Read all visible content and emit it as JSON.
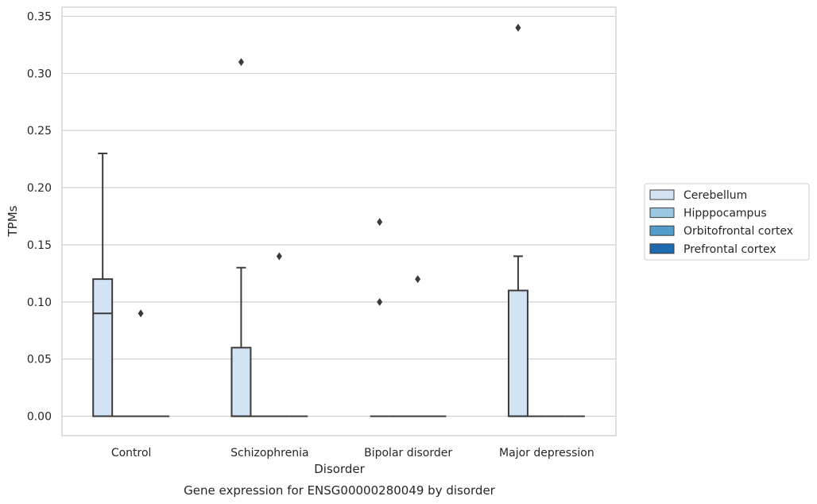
{
  "chart_data": {
    "type": "box",
    "caption": "Gene expression for ENSG00000280049 by disorder",
    "xlabel": "Disorder",
    "ylabel": "TPMs",
    "ylim": [
      -0.017,
      0.358
    ],
    "yticks": [
      0.0,
      0.05,
      0.1,
      0.15,
      0.2,
      0.25,
      0.3,
      0.35
    ],
    "ytick_labels": [
      "0.00",
      "0.05",
      "0.10",
      "0.15",
      "0.20",
      "0.25",
      "0.30",
      "0.35"
    ],
    "grid": "horizontal",
    "legend_position": "outside-right",
    "categories": [
      "Control",
      "Schizophrenia",
      "Bipolar disorder",
      "Major depression"
    ],
    "series": [
      {
        "name": "Cerebellum",
        "color": "#d2e3f3",
        "boxes": [
          {
            "category": "Control",
            "min": 0.0,
            "q1": 0.0,
            "median": 0.09,
            "q3": 0.12,
            "max": 0.23,
            "outliers": []
          },
          {
            "category": "Schizophrenia",
            "min": 0.0,
            "q1": 0.0,
            "median": 0.0,
            "q3": 0.06,
            "max": 0.13,
            "outliers": [
              0.31
            ]
          },
          {
            "category": "Bipolar disorder",
            "min": 0.0,
            "q1": 0.0,
            "median": 0.0,
            "q3": 0.0,
            "max": 0.0,
            "outliers": [
              0.1,
              0.17
            ]
          },
          {
            "category": "Major depression",
            "min": 0.0,
            "q1": 0.0,
            "median": 0.0,
            "q3": 0.11,
            "max": 0.14,
            "outliers": [
              0.34
            ]
          }
        ]
      },
      {
        "name": "Hipppocampus",
        "color": "#9ac8e0",
        "boxes": [
          {
            "category": "Control",
            "min": 0.0,
            "q1": 0.0,
            "median": 0.0,
            "q3": 0.0,
            "max": 0.0,
            "outliers": []
          },
          {
            "category": "Schizophrenia",
            "min": 0.0,
            "q1": 0.0,
            "median": 0.0,
            "q3": 0.0,
            "max": 0.0,
            "outliers": []
          },
          {
            "category": "Bipolar disorder",
            "min": 0.0,
            "q1": 0.0,
            "median": 0.0,
            "q3": 0.0,
            "max": 0.0,
            "outliers": []
          },
          {
            "category": "Major depression",
            "min": 0.0,
            "q1": 0.0,
            "median": 0.0,
            "q3": 0.0,
            "max": 0.0,
            "outliers": []
          }
        ]
      },
      {
        "name": "Orbitofrontal cortex",
        "color": "#529dcc",
        "boxes": [
          {
            "category": "Control",
            "min": 0.0,
            "q1": 0.0,
            "median": 0.0,
            "q3": 0.0,
            "max": 0.0,
            "outliers": [
              0.09
            ]
          },
          {
            "category": "Schizophrenia",
            "min": 0.0,
            "q1": 0.0,
            "median": 0.0,
            "q3": 0.0,
            "max": 0.0,
            "outliers": [
              0.14
            ]
          },
          {
            "category": "Bipolar disorder",
            "min": 0.0,
            "q1": 0.0,
            "median": 0.0,
            "q3": 0.0,
            "max": 0.0,
            "outliers": [
              0.12
            ]
          },
          {
            "category": "Major depression",
            "min": 0.0,
            "q1": 0.0,
            "median": 0.0,
            "q3": 0.0,
            "max": 0.0,
            "outliers": []
          }
        ]
      },
      {
        "name": "Prefrontal cortex",
        "color": "#1c6aaf",
        "boxes": [
          {
            "category": "Control",
            "min": 0.0,
            "q1": 0.0,
            "median": 0.0,
            "q3": 0.0,
            "max": 0.0,
            "outliers": []
          },
          {
            "category": "Schizophrenia",
            "min": 0.0,
            "q1": 0.0,
            "median": 0.0,
            "q3": 0.0,
            "max": 0.0,
            "outliers": []
          },
          {
            "category": "Bipolar disorder",
            "min": 0.0,
            "q1": 0.0,
            "median": 0.0,
            "q3": 0.0,
            "max": 0.0,
            "outliers": []
          },
          {
            "category": "Major depression",
            "min": 0.0,
            "q1": 0.0,
            "median": 0.0,
            "q3": 0.0,
            "max": 0.0,
            "outliers": []
          }
        ]
      }
    ]
  }
}
